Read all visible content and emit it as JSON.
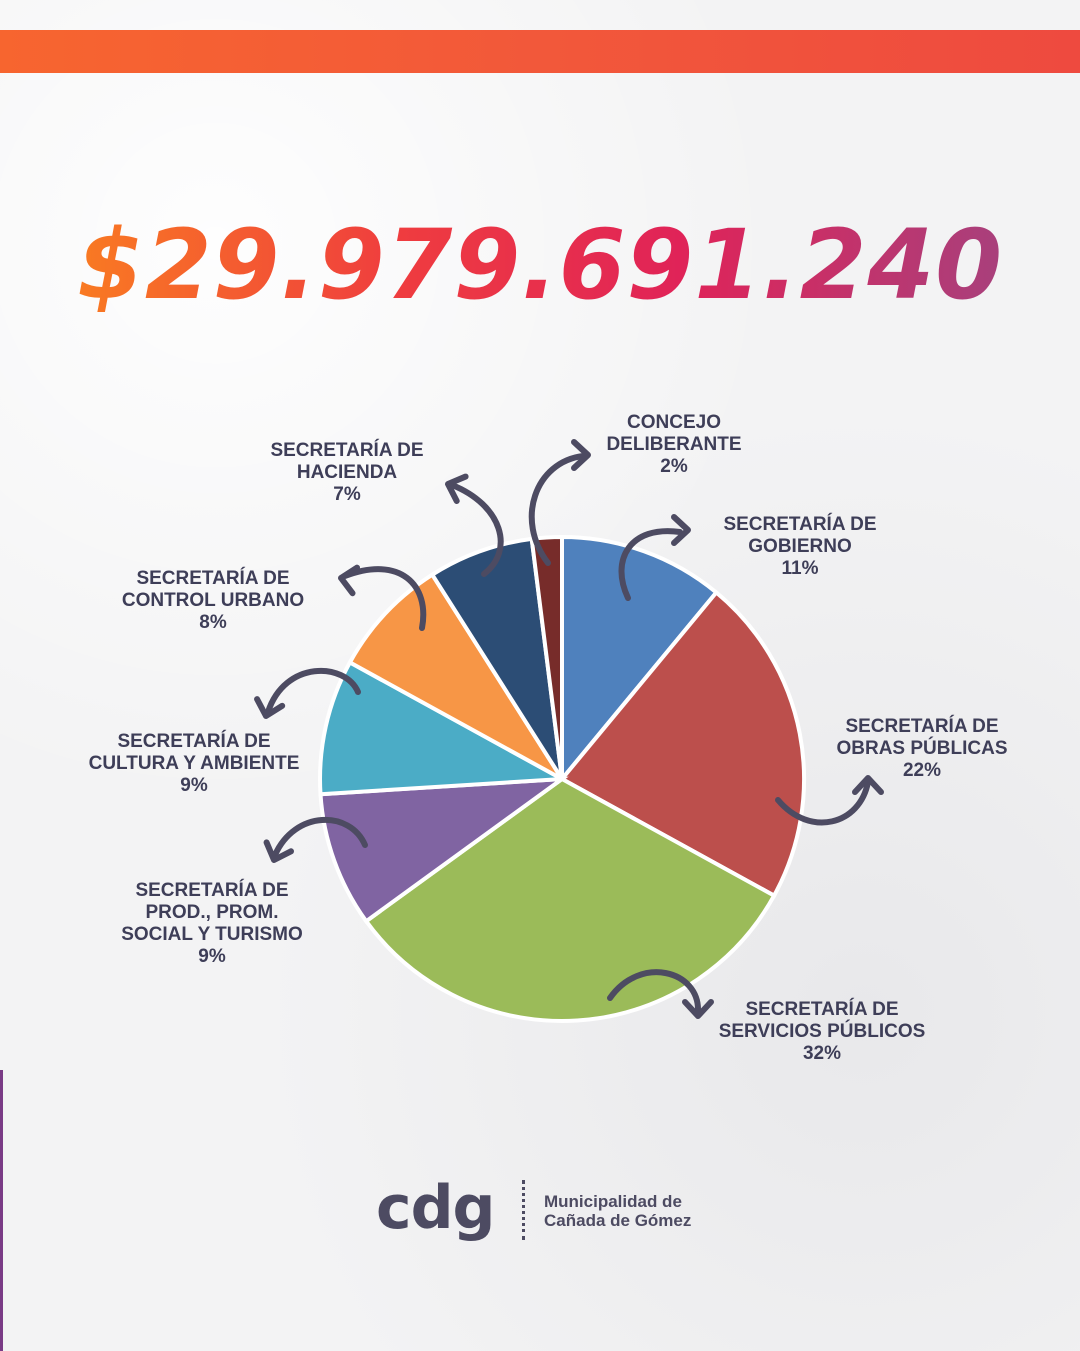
{
  "header": {
    "total_amount": "$29.979.691.240"
  },
  "chart_data": {
    "type": "pie",
    "slices": [
      {
        "label": "SECRETARÍA DE GOBIERNO",
        "value": 11,
        "value_label": "11%",
        "color": "#4f81bd"
      },
      {
        "label": "SECRETARÍA DE OBRAS PÚBLICAS",
        "value": 22,
        "value_label": "22%",
        "color": "#bc4f4c"
      },
      {
        "label": "SECRETARÍA DE SERVICIOS PÚBLICOS",
        "value": 32,
        "value_label": "32%",
        "color": "#9bbb59"
      },
      {
        "label": "SECRETARÍA DE PROD., PROM. SOCIAL Y TURISMO",
        "value": 9,
        "value_label": "9%",
        "color": "#8064a2"
      },
      {
        "label": "SECRETARÍA DE CULTURA Y AMBIENTE",
        "value": 9,
        "value_label": "9%",
        "color": "#4bacc6"
      },
      {
        "label": "SECRETARÍA DE CONTROL URBANO",
        "value": 8,
        "value_label": "8%",
        "color": "#f79646"
      },
      {
        "label": "SECRETARÍA DE HACIENDA",
        "value": 7,
        "value_label": "7%",
        "color": "#2c4d75"
      },
      {
        "label": "CONCEJO DELIBERANTE",
        "value": 2,
        "value_label": "2%",
        "color": "#772c2a"
      }
    ],
    "labels_display": [
      {
        "line1": "SECRETARÍA DE",
        "line2": "GOBIERNO",
        "line3": "",
        "pct": "11%"
      },
      {
        "line1": "SECRETARÍA DE",
        "line2": "OBRAS PÚBLICAS",
        "line3": "",
        "pct": "22%"
      },
      {
        "line1": "SECRETARÍA DE",
        "line2": "SERVICIOS PÚBLICOS",
        "line3": "",
        "pct": "32%"
      },
      {
        "line1": "SECRETARÍA DE",
        "line2": "PROD., PROM.",
        "line3": "SOCIAL Y TURISMO",
        "pct": "9%"
      },
      {
        "line1": "SECRETARÍA DE",
        "line2": "CULTURA Y AMBIENTE",
        "line3": "",
        "pct": "9%"
      },
      {
        "line1": "SECRETARÍA DE",
        "line2": "CONTROL URBANO",
        "line3": "",
        "pct": "8%"
      },
      {
        "line1": "SECRETARÍA DE",
        "line2": "HACIENDA",
        "line3": "",
        "pct": "7%"
      },
      {
        "line1": "CONCEJO",
        "line2": "DELIBERANTE",
        "line3": "",
        "pct": "2%"
      }
    ],
    "arrow_color": "#4d4b62"
  },
  "footer": {
    "logo_mark": "cdg",
    "org_line1": "Municipalidad de",
    "org_line2": "Cañada de Gómez"
  }
}
